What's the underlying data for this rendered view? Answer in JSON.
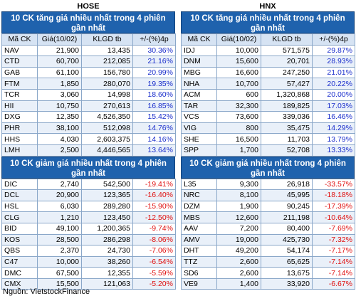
{
  "hose": {
    "exchange": "HOSE",
    "gain_title": "10 CK tăng giá nhiều nhất trong 4 phiên gần nhất",
    "loss_title": "10 CK giảm giá nhiều nhất trong 4 phiên gần nhất",
    "headers": [
      "Mã CK",
      "Giá(10/02)",
      "KLGD tb",
      "+/-(%)4p"
    ],
    "gainers": [
      [
        "NAV",
        "21,900",
        "13,435",
        "30.36%"
      ],
      [
        "CTD",
        "60,700",
        "212,085",
        "21.16%"
      ],
      [
        "GAB",
        "61,100",
        "156,780",
        "20.99%"
      ],
      [
        "FTM",
        "1,850",
        "280,070",
        "19.35%"
      ],
      [
        "TCR",
        "3,060",
        "14,998",
        "18.60%"
      ],
      [
        "HII",
        "10,750",
        "270,613",
        "16.85%"
      ],
      [
        "DXG",
        "12,350",
        "4,526,350",
        "15.42%"
      ],
      [
        "PHR",
        "38,100",
        "512,098",
        "14.76%"
      ],
      [
        "HHS",
        "4,030",
        "2,603,375",
        "14.16%"
      ],
      [
        "LMH",
        "2,500",
        "4,446,565",
        "13.64%"
      ]
    ],
    "losers": [
      [
        "DIC",
        "2,740",
        "542,500",
        "-19.41%"
      ],
      [
        "DCL",
        "20,900",
        "123,365",
        "-16.40%"
      ],
      [
        "HSL",
        "6,030",
        "289,280",
        "-15.90%"
      ],
      [
        "CLG",
        "1,210",
        "123,450",
        "-12.50%"
      ],
      [
        "BID",
        "49,100",
        "1,200,365",
        "-9.74%"
      ],
      [
        "KOS",
        "28,500",
        "286,298",
        "-8.06%"
      ],
      [
        "QBS",
        "2,370",
        "24,730",
        "-7.06%"
      ],
      [
        "C47",
        "10,000",
        "38,260",
        "-6.54%"
      ],
      [
        "DMC",
        "67,500",
        "12,355",
        "-5.59%"
      ],
      [
        "CMX",
        "15,500",
        "121,063",
        "-5.20%"
      ]
    ]
  },
  "hnx": {
    "exchange": "HNX",
    "gain_title": "10 CK tăng giá nhiều nhất trong 4 phiên gần nhất",
    "loss_title": "10 CK giảm giá nhiều nhất trong 4 phiên gần nhất",
    "headers": [
      "Mã CK",
      "Giá(10/02)",
      "KLGD tb",
      "+/-(%)4p"
    ],
    "gainers": [
      [
        "IDJ",
        "10,000",
        "571,575",
        "29.87%"
      ],
      [
        "DNM",
        "15,600",
        "20,701",
        "28.93%"
      ],
      [
        "MBG",
        "16,600",
        "247,250",
        "21.01%"
      ],
      [
        "NHA",
        "10,700",
        "57,427",
        "20.22%"
      ],
      [
        "ACM",
        "600",
        "1,320,868",
        "20.00%"
      ],
      [
        "TAR",
        "32,300",
        "189,825",
        "17.03%"
      ],
      [
        "VCS",
        "73,600",
        "339,036",
        "16.46%"
      ],
      [
        "VIG",
        "800",
        "35,475",
        "14.29%"
      ],
      [
        "SHE",
        "16,500",
        "11,703",
        "13.79%"
      ],
      [
        "SPP",
        "1,700",
        "52,708",
        "13.33%"
      ]
    ],
    "losers": [
      [
        "L35",
        "9,300",
        "26,918",
        "-33.57%"
      ],
      [
        "NRC",
        "8,100",
        "45,995",
        "-18.18%"
      ],
      [
        "DZM",
        "1,900",
        "90,245",
        "-17.39%"
      ],
      [
        "MBS",
        "12,600",
        "211,198",
        "-10.64%"
      ],
      [
        "AAV",
        "7,200",
        "80,400",
        "-7.69%"
      ],
      [
        "AMV",
        "19,000",
        "425,730",
        "-7.32%"
      ],
      [
        "DHT",
        "49,200",
        "54,174",
        "-7.17%"
      ],
      [
        "TTZ",
        "2,600",
        "65,625",
        "-7.14%"
      ],
      [
        "SD6",
        "2,600",
        "13,675",
        "-7.14%"
      ],
      [
        "VE9",
        "1,400",
        "33,920",
        "-6.67%"
      ]
    ]
  },
  "source": "Nguồn: VietstockFinance",
  "colors": {
    "header_bg": "#1f62ad",
    "gain": "#1a2ecc",
    "loss": "#e01010",
    "stripe": "#e9f0f9"
  }
}
